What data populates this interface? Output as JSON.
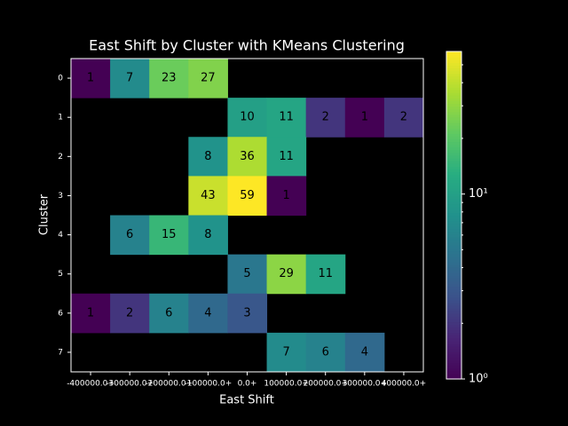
{
  "chart_data": {
    "type": "heatmap",
    "title": "East Shift by Cluster with KMeans Clustering",
    "xlabel": "East Shift",
    "ylabel": "Cluster",
    "x_categories": [
      "-400000.0+",
      "-300000.0+",
      "-200000.0+",
      "-100000.0+",
      "0.0+",
      "100000.0+",
      "200000.0+",
      "300000.0+",
      "400000.0+"
    ],
    "y_categories": [
      "0",
      "1",
      "2",
      "3",
      "4",
      "5",
      "6",
      "7"
    ],
    "values": [
      [
        1,
        7,
        23,
        27,
        null,
        null,
        null,
        null,
        null
      ],
      [
        null,
        null,
        null,
        null,
        10,
        11,
        2,
        1,
        2
      ],
      [
        null,
        null,
        null,
        8,
        36,
        11,
        null,
        null,
        null
      ],
      [
        null,
        null,
        null,
        43,
        59,
        1,
        null,
        null,
        null
      ],
      [
        null,
        6,
        15,
        8,
        null,
        null,
        null,
        null,
        null
      ],
      [
        null,
        null,
        null,
        null,
        5,
        29,
        11,
        null,
        null
      ],
      [
        1,
        2,
        6,
        4,
        3,
        null,
        null,
        null,
        null
      ],
      [
        null,
        null,
        null,
        null,
        null,
        7,
        6,
        4,
        null
      ]
    ],
    "colormap": "viridis",
    "log_scale": true,
    "clim": [
      1,
      59
    ],
    "cticks": [
      {
        "value": 1,
        "label": "10⁰"
      },
      {
        "value": 10,
        "label": "10¹"
      }
    ],
    "cminorticks": [
      2,
      3,
      4,
      5,
      6,
      7,
      8,
      9,
      20,
      30,
      40,
      50
    ]
  }
}
